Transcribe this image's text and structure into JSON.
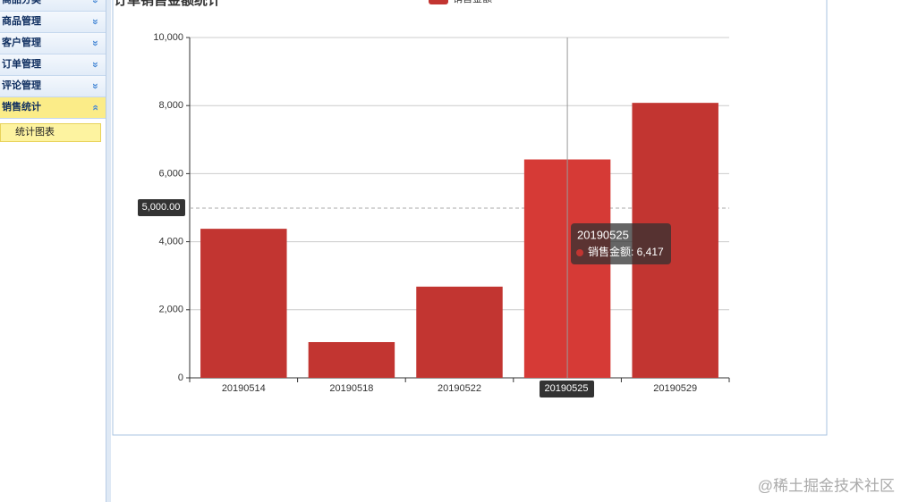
{
  "sidebar": {
    "menus": [
      "商品分类",
      "商品管理",
      "客户管理",
      "订单管理",
      "评论管理",
      "销售统计"
    ],
    "submenu": [
      "统计图表"
    ]
  },
  "chart_data": {
    "type": "bar",
    "title": "订单销售金额统计",
    "categories": [
      "20190514",
      "20190518",
      "20190522",
      "20190525",
      "20190529"
    ],
    "series": [
      {
        "name": "销售金额",
        "color": "#c23531",
        "values": [
          4380,
          1050,
          2680,
          6417,
          8080
        ]
      }
    ],
    "ylim": [
      0,
      10000
    ],
    "yticks": [
      0,
      {
        "value": 2000,
        "label": "2,000"
      },
      {
        "value": 4000,
        "label": "4,000"
      },
      {
        "value": 6000,
        "label": "6,000"
      },
      {
        "value": 8000,
        "label": "8,000"
      },
      {
        "value": 10000,
        "label": "10,000"
      }
    ],
    "grid": true
  },
  "tooltip": {
    "title": "20190525",
    "text": "销售金额: 6,417"
  },
  "axis_pointer": {
    "y_label": "5,000.00",
    "x_label": "20190525"
  },
  "watermark": "@稀土掘金技术社区"
}
